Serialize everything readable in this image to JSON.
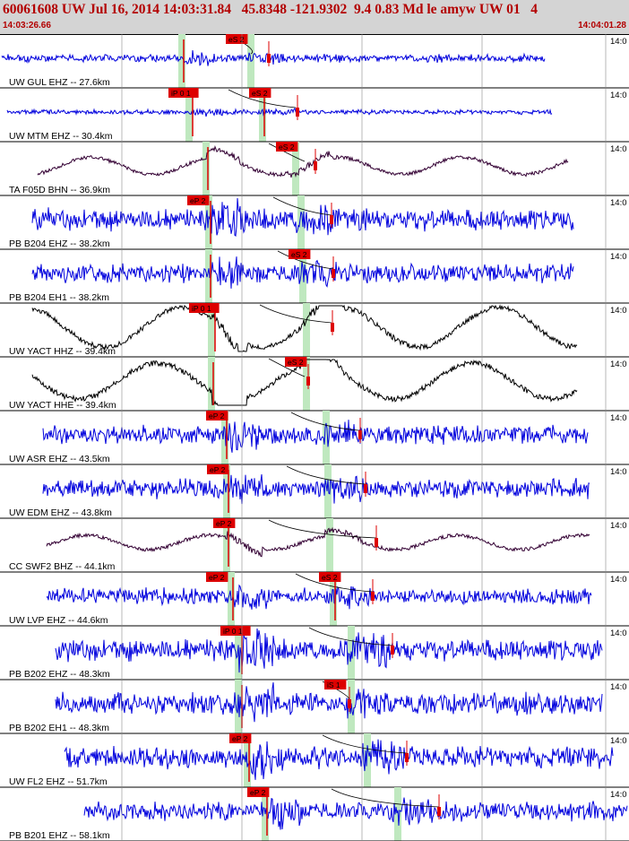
{
  "header": {
    "title": "60061608 UW Jul 16, 2014 14:03:31.84   45.8348 -121.9302  9.4 0.83 Md le amyw UW 01   4",
    "start_time": "14:03:26.66",
    "end_time": "14:04:01.28"
  },
  "right_tick_label": "14:0",
  "colors": {
    "accent": "#b30000",
    "trace_blue": "#0000dd",
    "trace_black": "#000000",
    "trace_purple": "#330033",
    "pick_red": "#dd0000",
    "shade_green": "#bfe8bf"
  },
  "traces": [
    {
      "label": "UW GUL EHZ -- 27.6km",
      "color": "blue",
      "picks": [
        "eS 2"
      ]
    },
    {
      "label": "UW MTM EHZ -- 30.4km",
      "color": "blue",
      "picks": [
        "iP 0 1",
        "eS 2"
      ]
    },
    {
      "label": "TA F05D BHN -- 36.9km",
      "color": "purple",
      "picks": [
        "eS 2"
      ]
    },
    {
      "label": "PB B204 EHZ -- 38.2km",
      "color": "blue",
      "picks": [
        "eP 2"
      ]
    },
    {
      "label": "PB B204 EH1 -- 38.2km",
      "color": "blue",
      "picks": [
        "eS 2"
      ]
    },
    {
      "label": "UW YACT HHZ -- 39.4km",
      "color": "black",
      "picks": [
        "iP 0 1"
      ]
    },
    {
      "label": "UW YACT HHE -- 39.4km",
      "color": "black",
      "picks": [
        "eS 2"
      ]
    },
    {
      "label": "UW ASR EHZ -- 43.5km",
      "color": "blue",
      "picks": [
        "eP 2"
      ]
    },
    {
      "label": "UW EDM EHZ -- 43.8km",
      "color": "blue",
      "picks": [
        "eP 2"
      ]
    },
    {
      "label": "CC SWF2 BHZ -- 44.1km",
      "color": "purple",
      "picks": [
        "eP 2"
      ]
    },
    {
      "label": "UW LVP EHZ -- 44.6km",
      "color": "blue",
      "picks": [
        "eP 2",
        "eS 2"
      ]
    },
    {
      "label": "PB B202 EHZ -- 48.3km",
      "color": "blue",
      "picks": [
        "iP 0 1"
      ]
    },
    {
      "label": "PB B202 EH1 -- 48.3km",
      "color": "blue",
      "picks": [
        "iS 1"
      ]
    },
    {
      "label": "UW FL2 EHZ -- 51.7km",
      "color": "blue",
      "picks": [
        "eP 2"
      ]
    },
    {
      "label": "PB B201 EHZ -- 58.1km",
      "color": "blue",
      "picks": [
        "eP 2"
      ]
    }
  ]
}
